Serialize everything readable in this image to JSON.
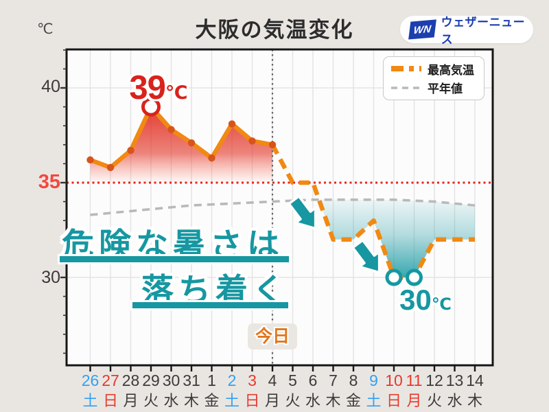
{
  "header": {
    "unit": "℃",
    "title": "大阪の気温変化",
    "logo_mark": "WN",
    "logo_name": "ウェザーニュース"
  },
  "ylabels": {
    "y40": "40",
    "y35": "35",
    "y30": "30"
  },
  "legend": {
    "items": [
      {
        "label": "最高気温",
        "style": "orange-dashed"
      },
      {
        "label": "平年値",
        "style": "gray-dashed"
      }
    ]
  },
  "annotations": {
    "peak_value": "39",
    "peak_unit": "℃",
    "low_value": "30",
    "low_unit": "℃",
    "message_line1": "危険な暑さは",
    "message_line2": "落ち着く",
    "today": "今日"
  },
  "colors": {
    "orange": "#f18912",
    "dot": "#d8541a",
    "red": "#d8231c",
    "red_line": "#e8231c",
    "teal": "#1697a1",
    "gray_line": "#b9b9b9",
    "grid": "#e3e3e3",
    "day": {
      "blue": "#33a0f2",
      "red": "#e7392d",
      "default": "#3c3c3c"
    }
  },
  "chart_data": {
    "type": "line",
    "title": "大阪の気温変化",
    "ylabel": "℃",
    "ylim": [
      25.5,
      42
    ],
    "yticks": [
      30,
      35,
      40
    ],
    "grid": true,
    "legend_position": "top-right",
    "threshold_line": {
      "value": 35,
      "color": "#e8231c",
      "style": "dotted"
    },
    "today_index": 9,
    "today_label": "今日",
    "categories": [
      "26",
      "27",
      "28",
      "29",
      "30",
      "31",
      "1",
      "2",
      "3",
      "4",
      "5",
      "6",
      "7",
      "8",
      "9",
      "10",
      "11",
      "12",
      "13",
      "14"
    ],
    "weekdays": [
      "土",
      "日",
      "月",
      "火",
      "水",
      "木",
      "金",
      "土",
      "日",
      "月",
      "火",
      "水",
      "木",
      "金",
      "土",
      "日",
      "月",
      "火",
      "水",
      "木"
    ],
    "day_colors": [
      "blue",
      "red",
      "default",
      "default",
      "default",
      "default",
      "default",
      "blue",
      "red",
      "default",
      "default",
      "default",
      "default",
      "default",
      "blue",
      "red",
      "red",
      "default",
      "default",
      "default"
    ],
    "series": [
      {
        "name": "最高気温",
        "color": "#f18912",
        "values": [
          36.2,
          35.8,
          36.7,
          39,
          37.8,
          37.1,
          36.3,
          38.1,
          37.2,
          37,
          35,
          35,
          32,
          32,
          33,
          30,
          30,
          32,
          32,
          32
        ]
      },
      {
        "name": "平年値",
        "color": "#b9b9b9",
        "values": [
          33.3,
          33.4,
          33.5,
          33.6,
          33.7,
          33.8,
          33.85,
          33.9,
          33.95,
          34,
          34.05,
          34.1,
          34.1,
          34.1,
          34.1,
          34.1,
          34.05,
          34,
          33.9,
          33.8
        ]
      }
    ],
    "markers": [
      {
        "index": 3,
        "style": "red",
        "label": "39℃"
      },
      {
        "index": 15,
        "style": "teal",
        "label": "30℃"
      },
      {
        "index": 16,
        "style": "teal",
        "label": "30℃"
      }
    ],
    "annotation_text": [
      "危険な暑さは",
      "落ち着く"
    ]
  }
}
